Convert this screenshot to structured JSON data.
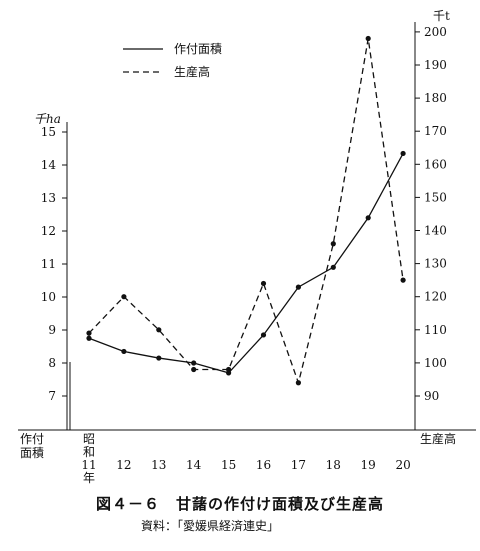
{
  "figure": {
    "title": "図４－６　甘藷の作付け面積及び生産高",
    "source": "資料：「愛媛県経済連史」"
  },
  "chart_data": {
    "type": "line",
    "x_row_label_left": "作付\n面積",
    "x_row_label_right": "生産高",
    "categories": [
      "昭\n和\n11\n年",
      "12",
      "13",
      "14",
      "15",
      "16",
      "17",
      "18",
      "19",
      "20"
    ],
    "left_axis": {
      "unit": "千ha",
      "ticks": [
        7,
        8,
        9,
        10,
        11,
        12,
        13,
        14,
        15
      ]
    },
    "right_axis": {
      "unit": "千t",
      "ticks": [
        90,
        100,
        110,
        120,
        130,
        140,
        150,
        160,
        170,
        180,
        190,
        200
      ]
    },
    "legend": [
      {
        "label": "作付面積",
        "style": "solid"
      },
      {
        "label": "生産高",
        "style": "dashed"
      }
    ],
    "legend_placement": "top-left",
    "series": [
      {
        "name": "作付面積",
        "axis": "left",
        "style": "solid",
        "values": [
          8.75,
          8.35,
          8.15,
          8.0,
          7.7,
          8.85,
          10.3,
          10.9,
          12.4,
          14.35
        ]
      },
      {
        "name": "生産高",
        "axis": "right",
        "style": "dashed",
        "values": [
          109,
          120,
          110,
          98,
          98,
          124,
          94,
          136,
          198,
          125
        ]
      }
    ]
  }
}
